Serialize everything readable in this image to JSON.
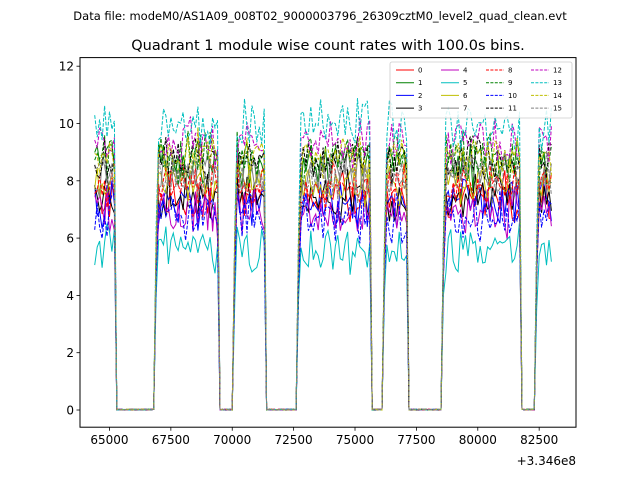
{
  "chart_data": {
    "type": "line",
    "suptitle": "Data file: modeM0/AS1A09_008T02_9000003796_26309cztM0_level2_quad_clean.evt",
    "title": "Quadrant 1 module wise count rates with 100.0s bins.",
    "xlabel": "",
    "ylabel": "",
    "x_offset_label": "+3.346e8",
    "xlim": [
      63800,
      84000
    ],
    "ylim": [
      -0.6,
      12.3
    ],
    "xticks": [
      65000,
      67500,
      70000,
      72500,
      75000,
      77500,
      80000,
      82500
    ],
    "xtick_labels": [
      "65000",
      "67500",
      "70000",
      "72500",
      "75000",
      "77500",
      "80000",
      "82500"
    ],
    "yticks": [
      0,
      2,
      4,
      6,
      8,
      10,
      12
    ],
    "ytick_labels": [
      "0",
      "2",
      "4",
      "6",
      "8",
      "10",
      "12"
    ],
    "x_start": 64400,
    "x_step": 100,
    "segments": [
      {
        "start": 64400,
        "end": 65200
      },
      {
        "start": 66900,
        "end": 69400
      },
      {
        "start": 70100,
        "end": 71300
      },
      {
        "start": 72700,
        "end": 75600
      },
      {
        "start": 76200,
        "end": 77100
      },
      {
        "start": 78600,
        "end": 81700
      },
      {
        "start": 82400,
        "end": 83000
      }
    ],
    "gap_value": 0.0,
    "series": [
      {
        "name": "0",
        "color": "#ff0000",
        "dash": "solid",
        "base": 7.4
      },
      {
        "name": "1",
        "color": "#008000",
        "dash": "solid",
        "base": 8.6
      },
      {
        "name": "2",
        "color": "#0000ff",
        "dash": "solid",
        "base": 7.2
      },
      {
        "name": "3",
        "color": "#000000",
        "dash": "solid",
        "base": 7.5
      },
      {
        "name": "4",
        "color": "#bf00bf",
        "dash": "solid",
        "base": 6.9
      },
      {
        "name": "5",
        "color": "#00bfbf",
        "dash": "solid",
        "base": 5.6
      },
      {
        "name": "6",
        "color": "#bfbf00",
        "dash": "solid",
        "base": 8.0
      },
      {
        "name": "7",
        "color": "#808080",
        "dash": "solid",
        "base": 8.3
      },
      {
        "name": "8",
        "color": "#ff0000",
        "dash": "dashed",
        "base": 7.9
      },
      {
        "name": "9",
        "color": "#008000",
        "dash": "dashed",
        "base": 8.8
      },
      {
        "name": "10",
        "color": "#0000ff",
        "dash": "dashed",
        "base": 6.7
      },
      {
        "name": "11",
        "color": "#000000",
        "dash": "dashed",
        "base": 8.7
      },
      {
        "name": "12",
        "color": "#bf00bf",
        "dash": "dashed",
        "base": 9.3
      },
      {
        "name": "13",
        "color": "#00bfbf",
        "dash": "dashed",
        "base": 9.9
      },
      {
        "name": "14",
        "color": "#bfbf00",
        "dash": "dashed",
        "base": 8.9
      },
      {
        "name": "15",
        "color": "#808080",
        "dash": "dashed",
        "base": 8.1
      }
    ],
    "legend_position": "upper-right"
  }
}
